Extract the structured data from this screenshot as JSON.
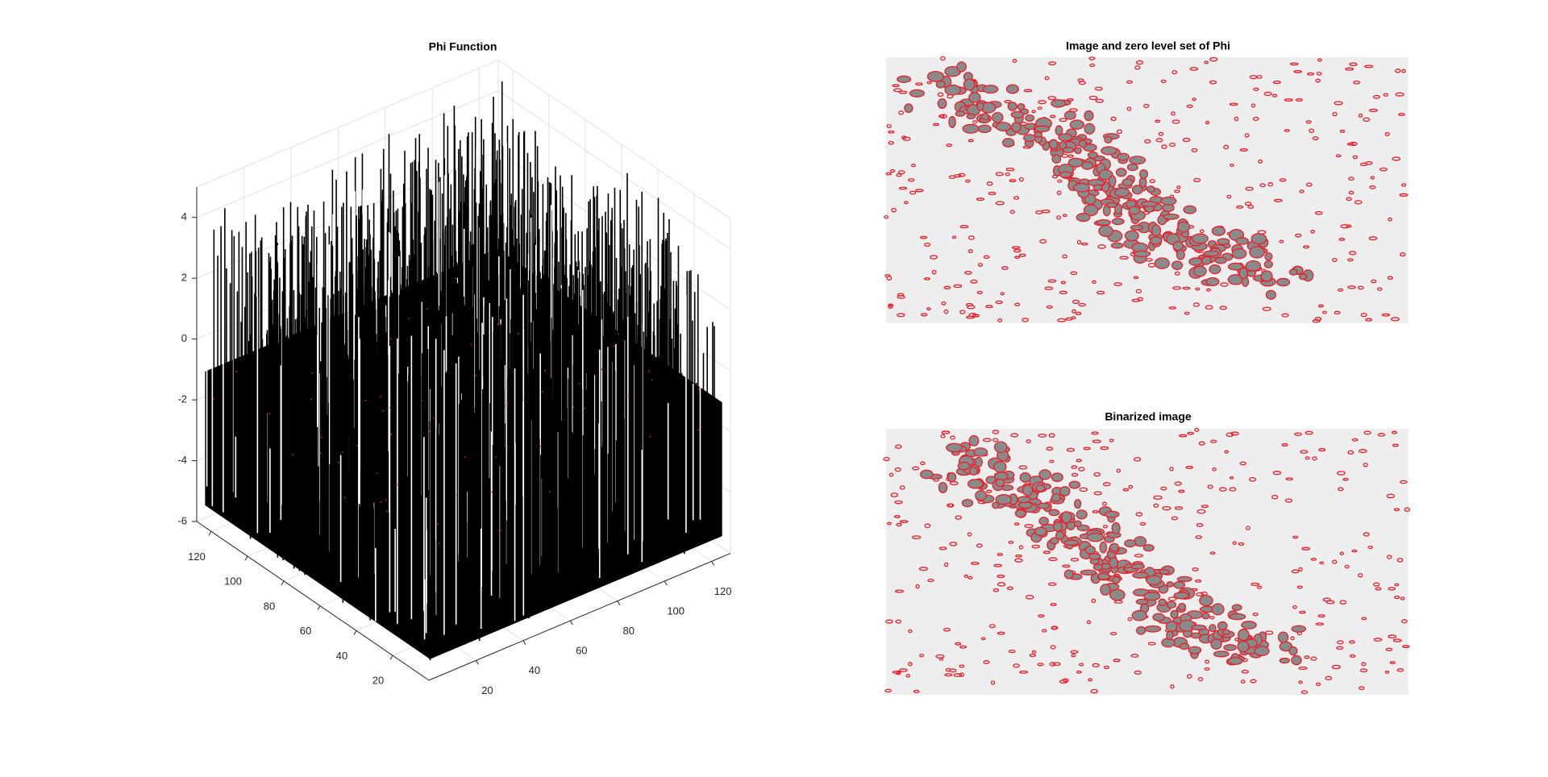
{
  "chart_data": [
    {
      "type": "surface",
      "title": "Phi Function",
      "xlim": [
        0,
        128
      ],
      "ylim": [
        0,
        128
      ],
      "zlim": [
        -6,
        5
      ],
      "xticks": [
        20,
        40,
        60,
        80,
        100,
        120
      ],
      "yticks": [
        20,
        40,
        60,
        80,
        100,
        120
      ],
      "zticks": [
        -6,
        -4,
        -2,
        0,
        2,
        4
      ],
      "grid": true,
      "color": "#000000"
    },
    {
      "type": "image",
      "title": "Image and zero level set of Phi",
      "color": "#e8202a"
    },
    {
      "type": "image",
      "title": "Binarized image",
      "color": "#e8202a"
    }
  ]
}
